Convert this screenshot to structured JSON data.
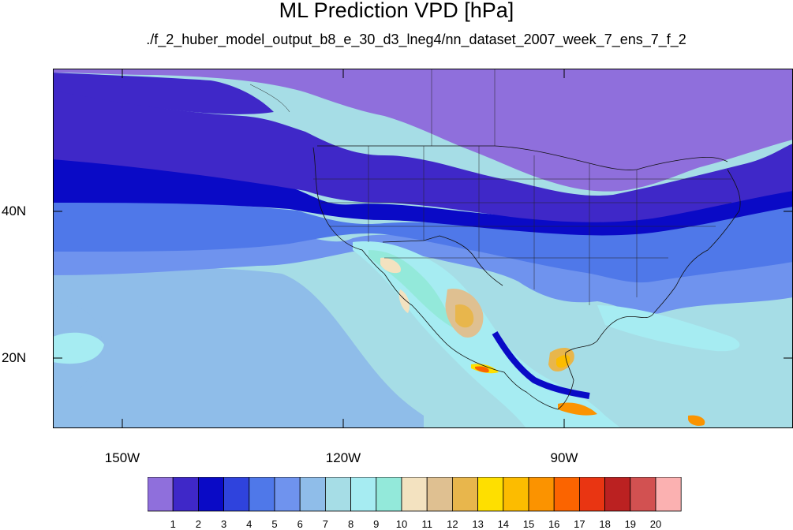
{
  "title": "ML Prediction VPD [hPa]",
  "subtitle": "./f_2_huber_model_output_b8_e_30_d3_lneg4/nn_dataset_2007_week_7_ens_7_f_2",
  "map": {
    "lat_labels": [
      "40N",
      "20N"
    ],
    "lon_labels": [
      "150W",
      "120W",
      "90W"
    ]
  },
  "colorbar": {
    "labels": [
      "1",
      "2",
      "3",
      "4",
      "5",
      "6",
      "7",
      "8",
      "9",
      "10",
      "11",
      "12",
      "13",
      "14",
      "15",
      "16",
      "17",
      "18",
      "19",
      "20"
    ],
    "colors": [
      "#8f6fdc",
      "#3f28c8",
      "#0a0ac6",
      "#2f43dd",
      "#4f78e9",
      "#6f93ee",
      "#8fbde9",
      "#a6dde6",
      "#a6ecf2",
      "#93e9da",
      "#f3e2c0",
      "#dfc091",
      "#e8b64c",
      "#fedf00",
      "#fcbc00",
      "#fb9300",
      "#fb6400",
      "#e93512",
      "#bb2121",
      "#d25151",
      "#fbb1b1"
    ]
  }
}
